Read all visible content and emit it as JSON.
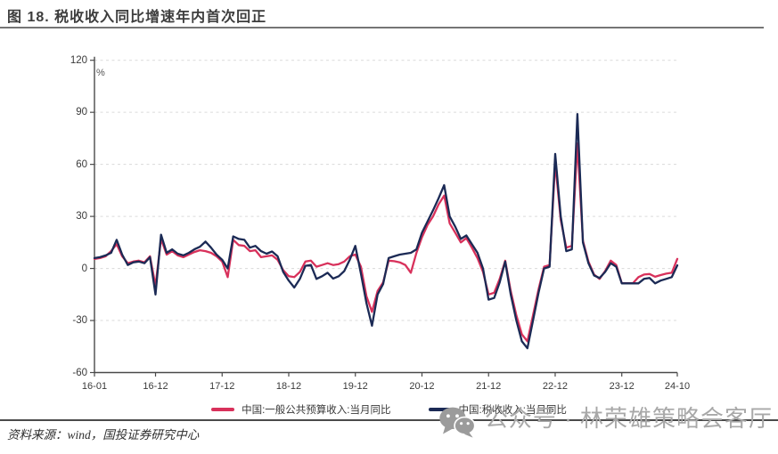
{
  "figure": {
    "title": "图 18. 税收收入同比增速年内首次回正"
  },
  "source_note": "资料来源：wind，国投证券研究中心",
  "watermark": {
    "icon": "wechat-icon",
    "text": "公众号 · 林荣雄策略会客厅"
  },
  "colors": {
    "budget_revenue_line": "#D8315B",
    "tax_revenue_line": "#1B2A55",
    "grid": "#DADADA",
    "axis": "#4a4a4a",
    "title_underline": "#757575",
    "watermark_gray": "#9b9b9b"
  },
  "chart_data": {
    "type": "line",
    "title": "图 18. 税收收入同比增速年内首次回正",
    "unit_label": "%",
    "ylim": [
      -60,
      120
    ],
    "yticks": [
      120,
      90,
      60,
      30,
      0,
      -30,
      -60
    ],
    "xtick_labels": [
      "16-01",
      "16-12",
      "17-12",
      "18-12",
      "19-12",
      "20-12",
      "21-12",
      "22-12",
      "23-12",
      "24-10"
    ],
    "grid": "horizontal-dashed",
    "legend_position": "bottom",
    "x": [
      "16-01",
      "16-02",
      "16-03",
      "16-04",
      "16-05",
      "16-06",
      "16-07",
      "16-08",
      "16-09",
      "16-10",
      "16-11",
      "16-12",
      "17-01",
      "17-02",
      "17-03",
      "17-04",
      "17-05",
      "17-06",
      "17-07",
      "17-08",
      "17-09",
      "17-10",
      "17-11",
      "17-12",
      "18-01",
      "18-02",
      "18-03",
      "18-04",
      "18-05",
      "18-06",
      "18-07",
      "18-08",
      "18-09",
      "18-10",
      "18-11",
      "18-12",
      "19-01",
      "19-02",
      "19-03",
      "19-04",
      "19-05",
      "19-06",
      "19-07",
      "19-08",
      "19-09",
      "19-10",
      "19-11",
      "19-12",
      "20-01",
      "20-02",
      "20-03",
      "20-04",
      "20-05",
      "20-06",
      "20-07",
      "20-08",
      "20-09",
      "20-10",
      "20-11",
      "20-12",
      "21-01",
      "21-02",
      "21-03",
      "21-04",
      "21-05",
      "21-06",
      "21-07",
      "21-08",
      "21-09",
      "21-10",
      "21-11",
      "21-12",
      "22-01",
      "22-02",
      "22-03",
      "22-04",
      "22-05",
      "22-06",
      "22-07",
      "22-08",
      "22-09",
      "22-10",
      "22-11",
      "22-12",
      "23-01",
      "23-02",
      "23-03",
      "23-04",
      "23-05",
      "23-06",
      "23-07",
      "23-08",
      "23-09",
      "23-10",
      "23-11",
      "23-12",
      "24-01",
      "24-02",
      "24-03",
      "24-04",
      "24-05",
      "24-06",
      "24-07",
      "24-08",
      "24-09",
      "24-10"
    ],
    "series": [
      {
        "name": "中国:一般公共预算收入:当月同比",
        "color": "#D8315B",
        "values": [
          5.5,
          6,
          7,
          10,
          14,
          7,
          3,
          4,
          4.5,
          3.5,
          7,
          -10,
          17,
          8,
          10,
          7.5,
          6.5,
          8,
          9.5,
          10.5,
          10,
          9,
          7,
          4,
          -5,
          16.5,
          13.5,
          13,
          10,
          10.5,
          6.5,
          7,
          7.5,
          5,
          -1,
          -4.5,
          -5,
          -2,
          4,
          4.5,
          1,
          2,
          3,
          2,
          2.5,
          4,
          7,
          8,
          1,
          -16,
          -25,
          -13,
          -8,
          4.5,
          4.2,
          3.5,
          2,
          -2.5,
          9,
          18,
          25,
          30,
          37,
          42,
          26,
          20.5,
          15,
          17.5,
          12,
          6,
          -2,
          -15,
          -14,
          -6,
          4.5,
          -13,
          -27,
          -38,
          -42,
          -27,
          -12,
          1,
          2,
          61,
          28,
          12,
          13,
          72,
          16,
          4,
          -3.5,
          -6,
          -1.5,
          4.5,
          2,
          -8.5,
          -8.5,
          -8.5,
          -5,
          -3.5,
          -3.2,
          -4.8,
          -3.8,
          -3,
          -2.5,
          5.5
        ]
      },
      {
        "name": "中国:税收收入:当月同比",
        "color": "#1B2A55",
        "values": [
          6,
          6.5,
          7.5,
          9,
          16.5,
          8,
          2,
          3.5,
          4,
          3,
          6.5,
          -15,
          19.5,
          9,
          11,
          8.5,
          7.5,
          9,
          11,
          12.5,
          15.5,
          12,
          8,
          5,
          0,
          18.5,
          17,
          16.5,
          12,
          13,
          10,
          8.5,
          9.8,
          7,
          -2,
          -7,
          -11,
          -6,
          1.5,
          2,
          -6,
          -4.5,
          -2.5,
          -5.8,
          -4.5,
          -1.5,
          5,
          13,
          -3,
          -20,
          -33,
          -15,
          -9,
          6,
          7,
          8,
          8.5,
          9,
          11,
          20.6,
          27,
          33.5,
          40.5,
          48,
          30,
          24,
          17,
          19,
          14,
          9,
          0,
          -18,
          -17,
          -8,
          4,
          -15,
          -30,
          -42,
          -46,
          -30,
          -14,
          0,
          1,
          66,
          30,
          10,
          11,
          89,
          15,
          3,
          -4,
          -5.5,
          -2,
          3,
          1,
          -8.6,
          -8.6,
          -8.6,
          -8.6,
          -6,
          -5.5,
          -8.6,
          -7,
          -6,
          -5,
          1.8
        ]
      }
    ]
  }
}
